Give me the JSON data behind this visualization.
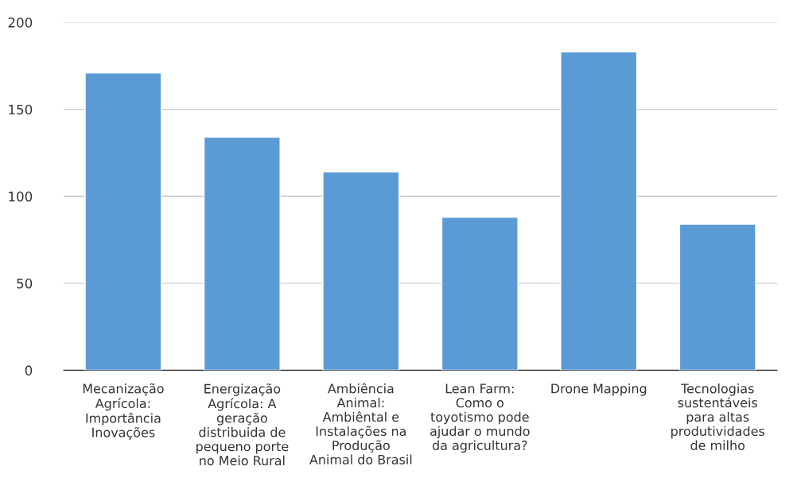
{
  "chart_data": {
    "type": "bar",
    "categories": [
      "Mecanização\nAgrícola:\nImportância\nInovações",
      "Energização\nAgrícola: A\ngeração\ndistribuida de\npequeno porte\nno Meio Rural",
      "Ambiência\nAnimal:\nAmbiêntal e\nInstalações na\nProdução\nAnimal do Brasil",
      "Lean Farm:\nComo o\ntoyotismo pode\najudar o mundo\nda agricultura?",
      "Drone Mapping",
      "Tecnologias\nsustentáveis\npara altas\nprodutividades\nde milho"
    ],
    "values": [
      171,
      134,
      114,
      88,
      183,
      84
    ],
    "color": "#5b9bd5",
    "ylim": [
      0,
      200
    ],
    "yticks": [
      0,
      50,
      100,
      150,
      200
    ],
    "grid": "y",
    "legend": false
  }
}
